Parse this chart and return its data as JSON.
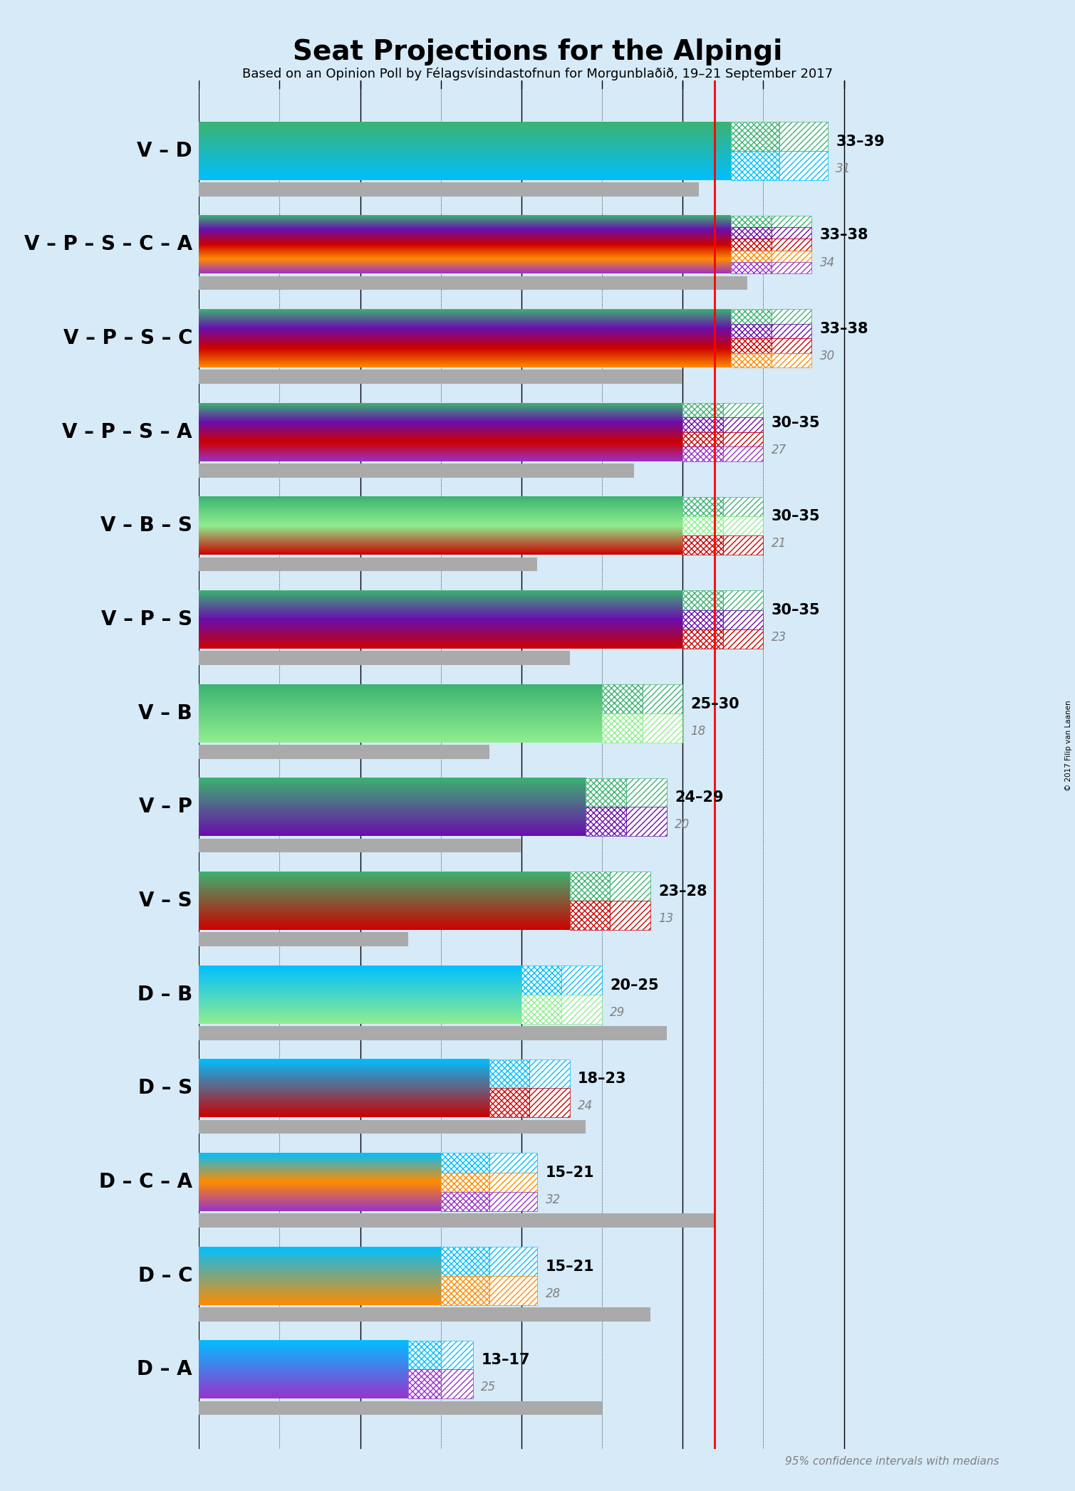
{
  "title": "Seat Projections for the Alpingi",
  "subtitle": "Based on an Opinion Poll by Félagsvísindastofnun for Morgunblaðið, 19–21 September 2017",
  "copyright": "© 2017 Filip van Laanen",
  "background_color": "#d6eaf8",
  "majority_line": 32,
  "x_ticks": [
    0,
    5,
    10,
    15,
    20,
    25,
    30,
    35,
    40
  ],
  "x_max_display": 42,
  "coalitions": [
    {
      "label": "V – D",
      "range_low": 33,
      "range_high": 39,
      "median": 31,
      "colors": [
        "#3cb371",
        "#00bfff"
      ]
    },
    {
      "label": "V – P – S – C – A",
      "range_low": 33,
      "range_high": 38,
      "median": 34,
      "colors": [
        "#3cb371",
        "#6a0dad",
        "#cc0000",
        "#ff8c00",
        "#9932cc"
      ]
    },
    {
      "label": "V – P – S – C",
      "range_low": 33,
      "range_high": 38,
      "median": 30,
      "colors": [
        "#3cb371",
        "#6a0dad",
        "#cc0000",
        "#ff8c00"
      ]
    },
    {
      "label": "V – P – S – A",
      "range_low": 30,
      "range_high": 35,
      "median": 27,
      "colors": [
        "#3cb371",
        "#6a0dad",
        "#cc0000",
        "#9932cc"
      ]
    },
    {
      "label": "V – B – S",
      "range_low": 30,
      "range_high": 35,
      "median": 21,
      "colors": [
        "#3cb371",
        "#90ee90",
        "#cc0000"
      ]
    },
    {
      "label": "V – P – S",
      "range_low": 30,
      "range_high": 35,
      "median": 23,
      "colors": [
        "#3cb371",
        "#6a0dad",
        "#cc0000"
      ]
    },
    {
      "label": "V – B",
      "range_low": 25,
      "range_high": 30,
      "median": 18,
      "colors": [
        "#3cb371",
        "#90ee90"
      ]
    },
    {
      "label": "V – P",
      "range_low": 24,
      "range_high": 29,
      "median": 20,
      "colors": [
        "#3cb371",
        "#6a0dad"
      ]
    },
    {
      "label": "V – S",
      "range_low": 23,
      "range_high": 28,
      "median": 13,
      "colors": [
        "#3cb371",
        "#cc0000"
      ]
    },
    {
      "label": "D – B",
      "range_low": 20,
      "range_high": 25,
      "median": 29,
      "colors": [
        "#00bfff",
        "#90ee90"
      ]
    },
    {
      "label": "D – S",
      "range_low": 18,
      "range_high": 23,
      "median": 24,
      "colors": [
        "#00bfff",
        "#cc0000"
      ]
    },
    {
      "label": "D – C – A",
      "range_low": 15,
      "range_high": 21,
      "median": 32,
      "colors": [
        "#00bfff",
        "#ff8c00",
        "#9932cc"
      ]
    },
    {
      "label": "D – C",
      "range_low": 15,
      "range_high": 21,
      "median": 28,
      "colors": [
        "#00bfff",
        "#ff8c00"
      ]
    },
    {
      "label": "D – A",
      "range_low": 13,
      "range_high": 17,
      "median": 25,
      "colors": [
        "#00bfff",
        "#9932cc"
      ]
    }
  ],
  "bar_height": 0.62,
  "median_bar_height": 0.15,
  "range_label_fontsize": 15,
  "median_fontsize": 12,
  "label_fontsize": 20,
  "title_fontsize": 28,
  "subtitle_fontsize": 13
}
